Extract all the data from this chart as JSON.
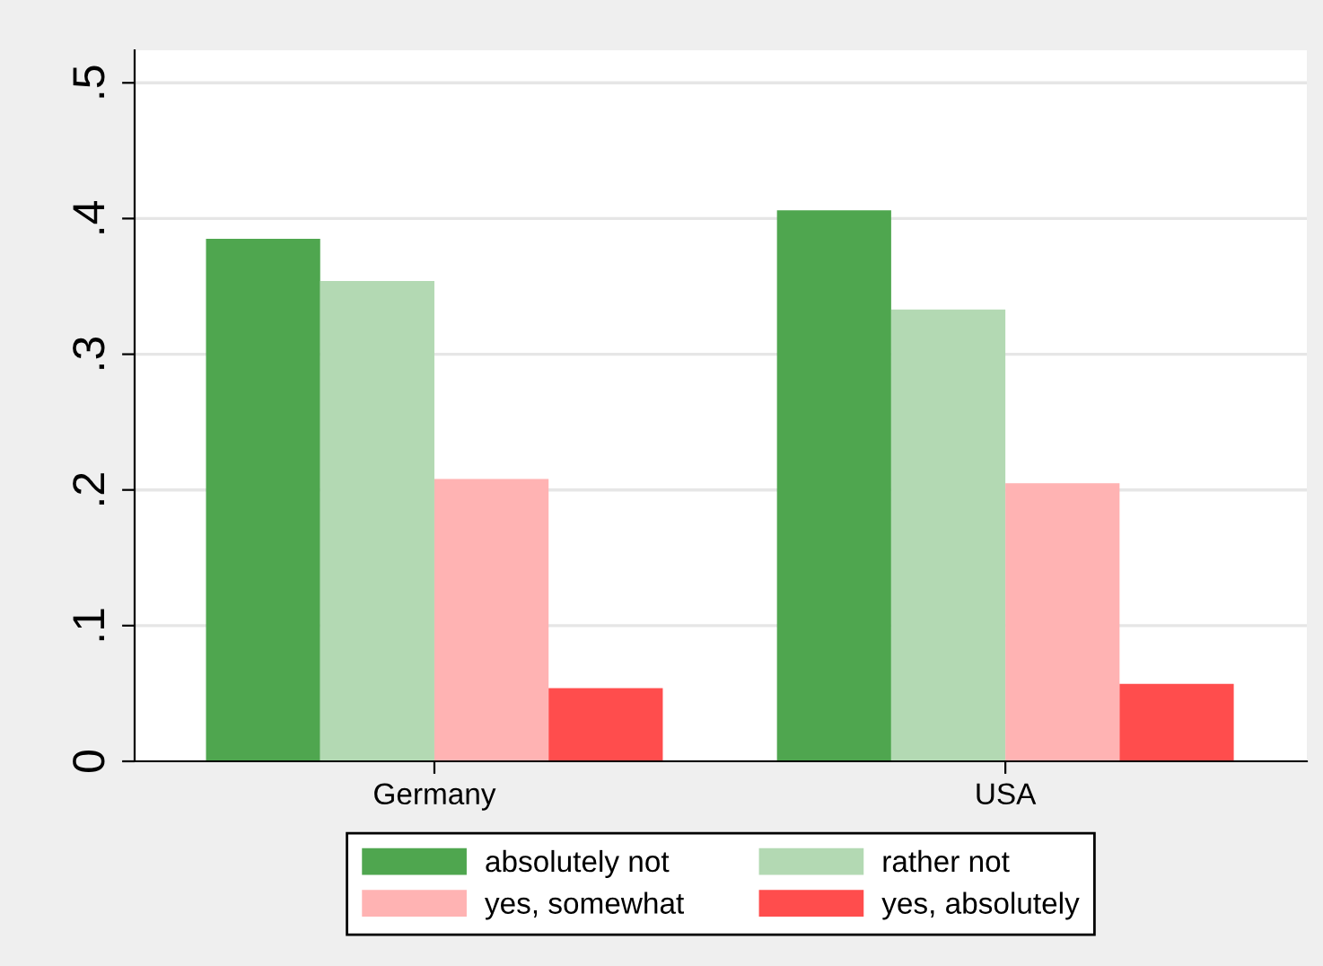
{
  "chart_data": {
    "type": "bar",
    "categories": [
      "Germany",
      "USA"
    ],
    "series": [
      {
        "name": "absolutely not",
        "color": "#4fa64f",
        "values": [
          0.385,
          0.406
        ]
      },
      {
        "name": "rather not",
        "color": "#b3d9b3",
        "values": [
          0.354,
          0.333
        ]
      },
      {
        "name": "yes, somewhat",
        "color": "#ffb3b3",
        "values": [
          0.208,
          0.205
        ]
      },
      {
        "name": "yes, absolutely",
        "color": "#ff4d4d",
        "values": [
          0.054,
          0.057
        ]
      }
    ],
    "ylim": [
      0,
      0.524
    ],
    "yticks": [
      {
        "value": 0,
        "label": "0"
      },
      {
        "value": 0.1,
        "label": ".1"
      },
      {
        "value": 0.2,
        "label": ".2"
      },
      {
        "value": 0.3,
        "label": ".3"
      },
      {
        "value": 0.4,
        "label": ".4"
      },
      {
        "value": 0.5,
        "label": ".5"
      }
    ],
    "grid": "y",
    "legend": "bottom"
  }
}
